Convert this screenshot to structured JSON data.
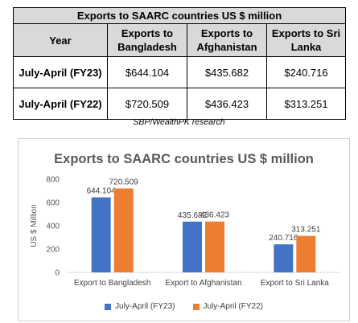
{
  "table": {
    "title": "Exports to SAARC countries US $ million",
    "headers": [
      "Year",
      "Exports to Bangladesh",
      "Exports to Afghanistan",
      "Exports to Sri Lanka"
    ],
    "rows": [
      {
        "year": "July-April (FY23)",
        "bangladesh": "$644.104",
        "afghanistan": "$435.682",
        "srilanka": "$240.716"
      },
      {
        "year": "July-April (FY22)",
        "bangladesh": "$720.509",
        "afghanistan": "$436.423",
        "srilanka": "$313.251"
      }
    ]
  },
  "source": "SBP/WealthPK research",
  "chart_data": {
    "type": "bar",
    "title": "Exports to SAARC countries US $ million",
    "xlabel": "",
    "ylabel": "US $ Million",
    "categories": [
      "Export to Bangladesh",
      "Export to Afghanistan",
      "Export to Sri Lanka"
    ],
    "series": [
      {
        "name": "July-April (FY23)",
        "values": [
          644.104,
          435.682,
          240.716
        ],
        "color": "#4472c4"
      },
      {
        "name": "July-April (FY22)",
        "values": [
          720.509,
          436.423,
          313.251
        ],
        "color": "#ed7d31"
      }
    ],
    "ylim": [
      0,
      800
    ],
    "yticks": [
      0,
      200,
      400,
      600,
      800
    ],
    "grid": false,
    "legend_position": "bottom"
  }
}
